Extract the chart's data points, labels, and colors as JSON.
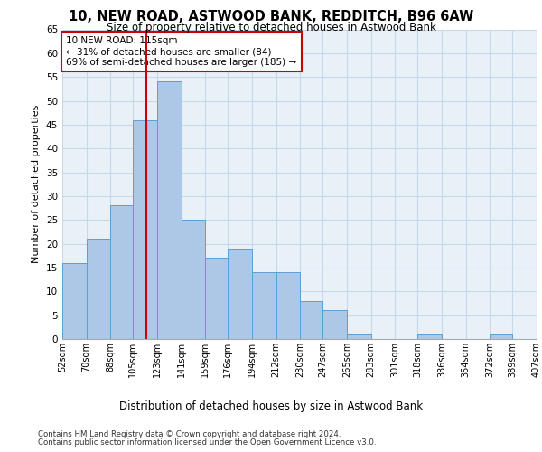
{
  "title1": "10, NEW ROAD, ASTWOOD BANK, REDDITCH, B96 6AW",
  "title2": "Size of property relative to detached houses in Astwood Bank",
  "xlabel": "Distribution of detached houses by size in Astwood Bank",
  "ylabel": "Number of detached properties",
  "footnote1": "Contains HM Land Registry data © Crown copyright and database right 2024.",
  "footnote2": "Contains public sector information licensed under the Open Government Licence v3.0.",
  "annotation_line1": "10 NEW ROAD: 115sqm",
  "annotation_line2": "← 31% of detached houses are smaller (84)",
  "annotation_line3": "69% of semi-detached houses are larger (185) →",
  "property_size": 115,
  "bin_edges": [
    52,
    70,
    88,
    105,
    123,
    141,
    159,
    176,
    194,
    212,
    230,
    247,
    265,
    283,
    301,
    318,
    336,
    354,
    372,
    389,
    407
  ],
  "bin_labels": [
    "52sqm",
    "70sqm",
    "88sqm",
    "105sqm",
    "123sqm",
    "141sqm",
    "159sqm",
    "176sqm",
    "194sqm",
    "212sqm",
    "230sqm",
    "247sqm",
    "265sqm",
    "283sqm",
    "301sqm",
    "318sqm",
    "336sqm",
    "354sqm",
    "372sqm",
    "389sqm",
    "407sqm"
  ],
  "bar_heights": [
    16,
    21,
    28,
    46,
    54,
    25,
    17,
    19,
    14,
    14,
    8,
    6,
    1,
    0,
    0,
    1,
    0,
    0,
    1,
    0
  ],
  "bar_color": "#adc8e6",
  "bar_edgecolor": "#5a9fd4",
  "vline_x": 115,
  "vline_color": "#cc0000",
  "ylim": [
    0,
    65
  ],
  "yticks": [
    0,
    5,
    10,
    15,
    20,
    25,
    30,
    35,
    40,
    45,
    50,
    55,
    60,
    65
  ],
  "grid_color": "#c8d8e8",
  "bg_color": "#e8f0f8",
  "annotation_box_edgecolor": "#cc0000",
  "annotation_box_facecolor": "#ffffff"
}
